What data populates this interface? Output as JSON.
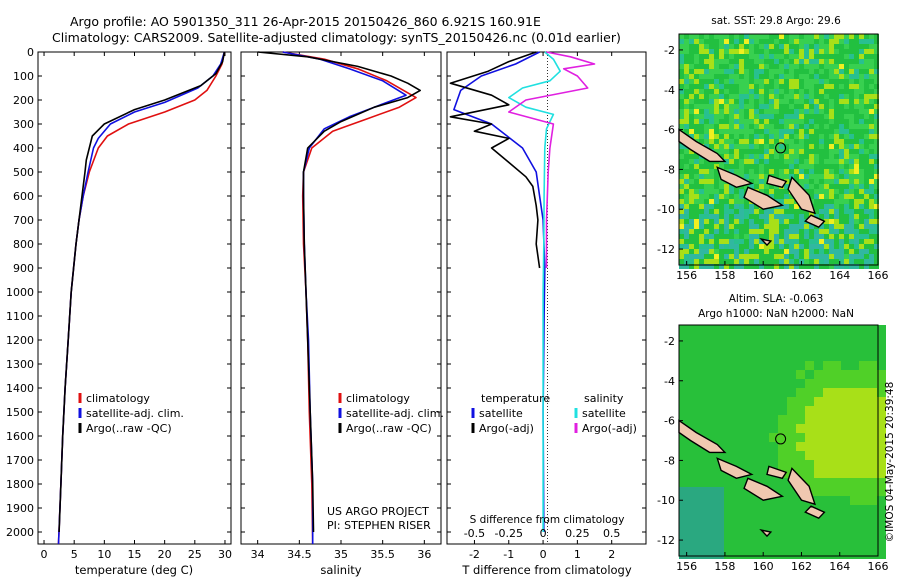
{
  "header": {
    "title_line1": "Argo profile: AO 5901350_311 26-Apr-2015 20150426_860 6.921S 160.91E",
    "title_line2": "Climatology: CARS2009. Satellite-adjusted climatology: synTS_20150426.nc (0.01d earlier)"
  },
  "colors": {
    "climatology": "#e01010",
    "satellite_adj": "#1010e0",
    "argo": "#000000",
    "sal_satellite": "#20e0e0",
    "sal_argo": "#e020e0",
    "land": "#f0c8b0",
    "map_sea": "#20c020"
  },
  "footer": {
    "project": "US ARGO PROJECT",
    "pi": "PI: STEPHEN RISER",
    "stamp": "©IMOS 04-May-2015 20:39:48"
  },
  "chart_data": [
    {
      "type": "line",
      "panel": "temperature",
      "xlabel": "temperature (deg C)",
      "ylabel": "",
      "xlim": [
        -1,
        31
      ],
      "ylim": [
        0,
        2050
      ],
      "y_reversed": true,
      "xticks": [
        0,
        5,
        10,
        15,
        20,
        25,
        30
      ],
      "yticks": [
        0,
        100,
        200,
        300,
        400,
        500,
        600,
        700,
        800,
        900,
        1000,
        1100,
        1200,
        1300,
        1400,
        1500,
        1600,
        1700,
        1800,
        1900,
        2000
      ],
      "legend": [
        "climatology",
        "satellite-adj. clim.",
        "Argo(..raw -QC)"
      ],
      "series": [
        {
          "name": "climatology",
          "color": "#e01010",
          "points": [
            [
              29.9,
              0
            ],
            [
              29.5,
              50
            ],
            [
              28.5,
              100
            ],
            [
              27,
              160
            ],
            [
              25,
              200
            ],
            [
              20,
              250
            ],
            [
              14,
              300
            ],
            [
              10.5,
              350
            ],
            [
              9,
              400
            ],
            [
              7.5,
              500
            ],
            [
              6.5,
              600
            ],
            [
              5.8,
              700
            ],
            [
              5.3,
              800
            ],
            [
              4.9,
              900
            ],
            [
              4.5,
              1000
            ],
            [
              4,
              1200
            ],
            [
              3.5,
              1400
            ],
            [
              3.1,
              1600
            ],
            [
              2.8,
              1800
            ],
            [
              2.4,
              2050
            ]
          ]
        },
        {
          "name": "satellite-adj. clim.",
          "color": "#1010e0",
          "points": [
            [
              29.9,
              0
            ],
            [
              29.3,
              50
            ],
            [
              28,
              100
            ],
            [
              25.5,
              150
            ],
            [
              20,
              210
            ],
            [
              15,
              250
            ],
            [
              11,
              300
            ],
            [
              9,
              360
            ],
            [
              8.2,
              400
            ],
            [
              7.3,
              500
            ],
            [
              6.5,
              600
            ],
            [
              5.8,
              700
            ],
            [
              5.3,
              800
            ],
            [
              4.9,
              900
            ],
            [
              4.5,
              1000
            ],
            [
              4,
              1200
            ],
            [
              3.5,
              1400
            ],
            [
              3.1,
              1600
            ],
            [
              2.8,
              1800
            ],
            [
              2.4,
              2050
            ]
          ]
        },
        {
          "name": "Argo(..raw -QC)",
          "color": "#000000",
          "points": [
            [
              29.9,
              0
            ],
            [
              29.6,
              40
            ],
            [
              28.5,
              90
            ],
            [
              26,
              140
            ],
            [
              20,
              200
            ],
            [
              15,
              240
            ],
            [
              10,
              300
            ],
            [
              8,
              350
            ],
            [
              7.5,
              400
            ],
            [
              7,
              450
            ],
            [
              6.8,
              500
            ],
            [
              6.3,
              600
            ],
            [
              5.8,
              700
            ],
            [
              5.3,
              800
            ],
            [
              4.9,
              900
            ],
            [
              4.5,
              1000
            ],
            [
              4,
              1200
            ],
            [
              3.5,
              1400
            ],
            [
              3.1,
              1600
            ],
            [
              2.8,
              1800
            ],
            [
              2.5,
              2000
            ]
          ]
        }
      ]
    },
    {
      "type": "line",
      "panel": "salinity",
      "xlabel": "salinity",
      "xlim": [
        33.8,
        36.2
      ],
      "ylim": [
        0,
        2050
      ],
      "y_reversed": true,
      "xticks": [
        34,
        34.5,
        35,
        35.5,
        36
      ],
      "legend": [
        "climatology",
        "satellite-adj. clim.",
        "Argo(..raw -QC)"
      ],
      "series": [
        {
          "name": "climatology",
          "color": "#e01010",
          "points": [
            [
              34.3,
              0
            ],
            [
              34.8,
              30
            ],
            [
              35.2,
              70
            ],
            [
              35.55,
              120
            ],
            [
              35.9,
              190
            ],
            [
              35.7,
              230
            ],
            [
              35.3,
              280
            ],
            [
              34.9,
              330
            ],
            [
              34.65,
              400
            ],
            [
              34.55,
              500
            ],
            [
              34.54,
              600
            ],
            [
              34.55,
              800
            ],
            [
              34.58,
              1000
            ],
            [
              34.6,
              1200
            ],
            [
              34.62,
              1500
            ],
            [
              34.65,
              1800
            ],
            [
              34.66,
              2050
            ]
          ]
        },
        {
          "name": "satellite-adj. clim.",
          "color": "#1010e0",
          "points": [
            [
              34.3,
              0
            ],
            [
              34.75,
              30
            ],
            [
              35.1,
              70
            ],
            [
              35.5,
              120
            ],
            [
              35.78,
              180
            ],
            [
              35.4,
              230
            ],
            [
              35.1,
              270
            ],
            [
              34.8,
              320
            ],
            [
              34.62,
              400
            ],
            [
              34.55,
              500
            ],
            [
              34.55,
              600
            ],
            [
              34.56,
              800
            ],
            [
              34.58,
              1000
            ],
            [
              34.61,
              1200
            ],
            [
              34.63,
              1500
            ],
            [
              34.66,
              1800
            ],
            [
              34.66,
              2050
            ]
          ]
        },
        {
          "name": "Argo(..raw -QC)",
          "color": "#000000",
          "points": [
            [
              34.0,
              0
            ],
            [
              34.6,
              20
            ],
            [
              35.2,
              60
            ],
            [
              35.6,
              100
            ],
            [
              35.8,
              130
            ],
            [
              35.95,
              160
            ],
            [
              35.8,
              190
            ],
            [
              35.4,
              230
            ],
            [
              35.0,
              290
            ],
            [
              34.8,
              330
            ],
            [
              34.6,
              400
            ],
            [
              34.55,
              500
            ],
            [
              34.55,
              600
            ],
            [
              34.56,
              800
            ],
            [
              34.58,
              1000
            ],
            [
              34.6,
              1200
            ],
            [
              34.63,
              1500
            ],
            [
              34.66,
              1800
            ],
            [
              34.67,
              2000
            ]
          ]
        }
      ]
    },
    {
      "type": "line",
      "panel": "difference",
      "xlabel": "T difference from climatology",
      "xlabel_top": "S difference from climatology",
      "xlim": [
        -2.8,
        3.0
      ],
      "ylim": [
        0,
        2050
      ],
      "y_reversed": true,
      "xticks": [
        -2,
        -1,
        0,
        1,
        2
      ],
      "xticks_top_values": [
        -0.5,
        -0.25,
        0,
        0.25,
        0.5
      ],
      "xticks_top": [
        "-0.5",
        "-0.25",
        "0",
        "0.25",
        "0.5"
      ],
      "legend_titles": [
        "temperature",
        "salinity"
      ],
      "legend": [
        "satellite",
        "Argo(-adj)",
        "satellite",
        "Argo(-adj)"
      ],
      "series": [
        {
          "name": "satellite",
          "color": "#1010e0",
          "points": [
            [
              -0.1,
              0
            ],
            [
              -0.8,
              50
            ],
            [
              -1.8,
              100
            ],
            [
              -2.4,
              160
            ],
            [
              -2.6,
              240
            ],
            [
              -1.5,
              300
            ],
            [
              -0.6,
              400
            ],
            [
              -0.2,
              500
            ],
            [
              -0.1,
              600
            ],
            [
              0,
              700
            ],
            [
              0.05,
              900
            ],
            [
              0.03,
              1100
            ],
            [
              0,
              1500
            ],
            [
              0.02,
              2000
            ]
          ]
        },
        {
          "name": "Argo(-adj)",
          "color": "#000000",
          "points": [
            [
              -0.2,
              0
            ],
            [
              -1.0,
              40
            ],
            [
              -1.6,
              80
            ],
            [
              -2.7,
              130
            ],
            [
              -1.5,
              180
            ],
            [
              -1.0,
              220
            ],
            [
              -2.7,
              270
            ],
            [
              -1.5,
              300
            ],
            [
              -2.0,
              330
            ],
            [
              -1.0,
              360
            ],
            [
              -1.5,
              400
            ],
            [
              -1.0,
              460
            ],
            [
              -0.5,
              520
            ],
            [
              -0.3,
              560
            ],
            [
              -0.2,
              640
            ],
            [
              -0.15,
              700
            ],
            [
              -0.2,
              800
            ],
            [
              -0.1,
              900
            ]
          ]
        },
        {
          "name": "satellite",
          "color": "#20e0e0",
          "points": [
            [
              0.05,
              0
            ],
            [
              0.3,
              30
            ],
            [
              0.5,
              80
            ],
            [
              0.2,
              120
            ],
            [
              -0.6,
              150
            ],
            [
              -1.0,
              190
            ],
            [
              -0.5,
              230
            ],
            [
              0.3,
              260
            ],
            [
              0.1,
              320
            ],
            [
              0.05,
              400
            ],
            [
              0.03,
              600
            ],
            [
              0.02,
              800
            ],
            [
              0,
              1000
            ],
            [
              0,
              1500
            ],
            [
              0,
              2000
            ]
          ]
        },
        {
          "name": "Argo(-adj)",
          "color": "#e020e0",
          "points": [
            [
              0.1,
              0
            ],
            [
              0.8,
              20
            ],
            [
              1.5,
              50
            ],
            [
              0.6,
              70
            ],
            [
              1.0,
              100
            ],
            [
              1.3,
              150
            ],
            [
              -0.5,
              200
            ],
            [
              -1.0,
              250
            ],
            [
              0.3,
              300
            ],
            [
              0.2,
              400
            ],
            [
              0.15,
              500
            ],
            [
              0.1,
              700
            ],
            [
              0.1,
              900
            ]
          ]
        }
      ]
    },
    {
      "type": "heatmap",
      "panel": "map_sst",
      "title": "sat. SST: 29.8  Argo: 29.6",
      "xlim": [
        155.6,
        166
      ],
      "ylim": [
        -12.8,
        -1.2
      ],
      "xticks": [
        156,
        158,
        160,
        162,
        164,
        166
      ],
      "yticks": [
        -2,
        -4,
        -6,
        -8,
        -10,
        -12
      ],
      "marker": [
        160.91,
        -6.921
      ]
    },
    {
      "type": "heatmap",
      "panel": "map_sla",
      "title": "Altim. SLA: -0.063",
      "subtitle": "Argo h1000: NaN h2000: NaN",
      "xlim": [
        155.6,
        166
      ],
      "ylim": [
        -12.8,
        -1.2
      ],
      "xticks": [
        156,
        158,
        160,
        162,
        164,
        166
      ],
      "yticks": [
        -2,
        -4,
        -6,
        -8,
        -10,
        -12
      ],
      "marker": [
        160.91,
        -6.921
      ]
    }
  ]
}
